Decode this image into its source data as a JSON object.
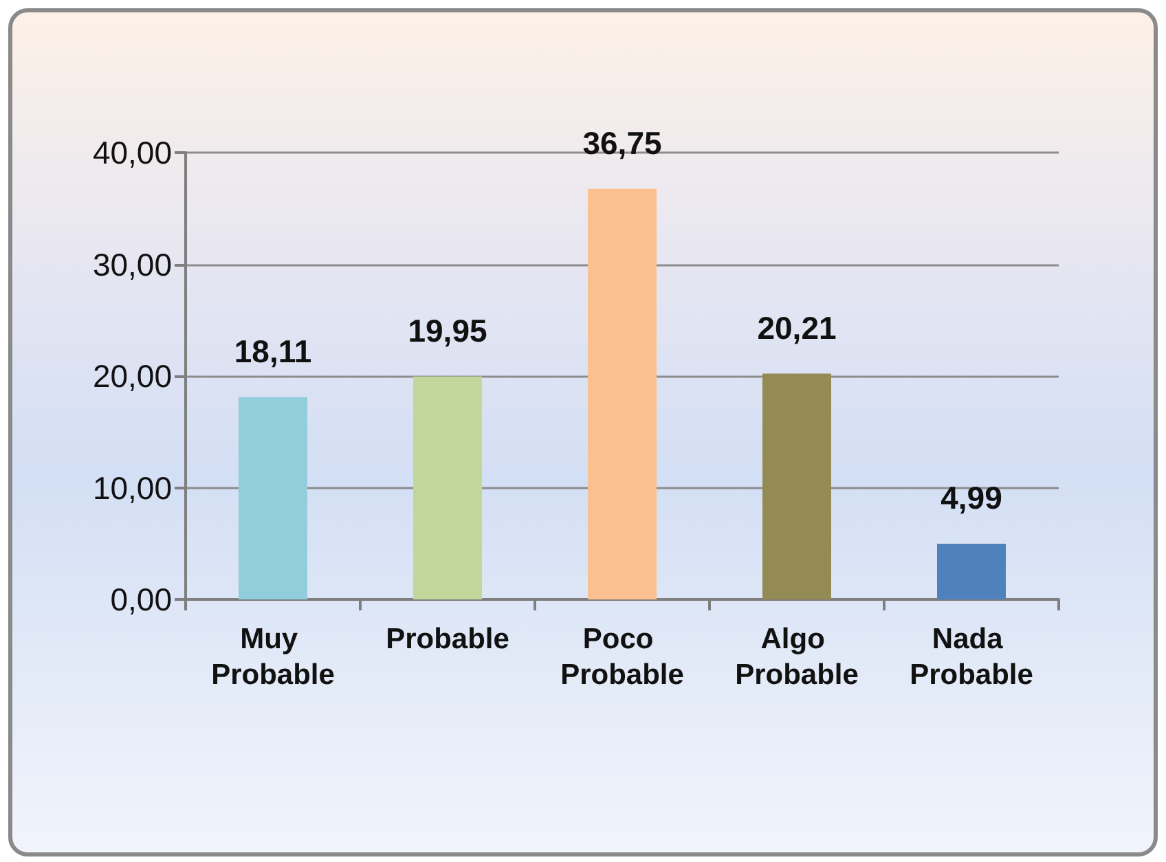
{
  "chart_data": {
    "type": "bar",
    "categories": [
      "Muy Probable",
      "Probable",
      "Poco Probable",
      "Algo Probable",
      "Nada Probable"
    ],
    "values": [
      18.11,
      19.95,
      36.75,
      20.21,
      4.99
    ],
    "colors": [
      "#92cddc",
      "#c3d69b",
      "#fac090",
      "#948a54",
      "#4f81bd"
    ],
    "value_labels": [
      "18,11",
      "19,95",
      "36,75",
      "20,21",
      "4,99"
    ],
    "ylim": [
      0,
      40
    ],
    "yticks": [
      {
        "value": 0,
        "label": "0,00"
      },
      {
        "value": 10,
        "label": "10,00"
      },
      {
        "value": 20,
        "label": "20,00"
      },
      {
        "value": 30,
        "label": "30,00"
      },
      {
        "value": 40,
        "label": "40,00"
      }
    ],
    "grid": true
  }
}
